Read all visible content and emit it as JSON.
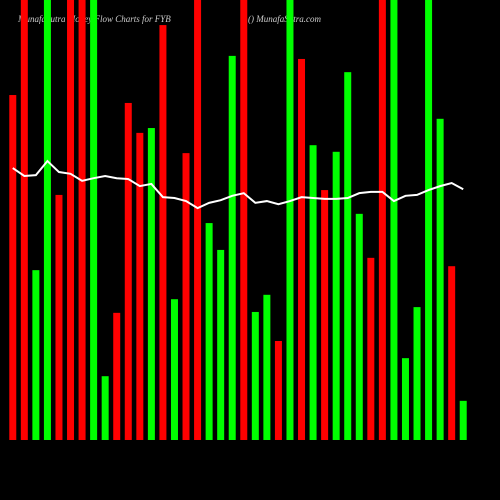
{
  "chart_data": {
    "type": "bar",
    "title": "MunafaSutra  Money Flow  Charts for FYB",
    "subtitle": "() MunafaSutra.com",
    "ylim": [
      0,
      100
    ],
    "values": [
      78.4,
      100,
      38.6,
      100,
      55.7,
      100,
      100,
      100,
      14.5,
      28.9,
      76.6,
      69.8,
      70.9,
      94.3,
      32.0,
      65.2,
      100,
      49.3,
      43.2,
      87.3,
      100,
      29.1,
      33.0,
      22.5,
      100,
      86.6,
      67.0,
      56.8,
      65.5,
      83.6,
      51.4,
      41.4,
      100,
      100,
      18.6,
      30.2,
      100,
      73.0,
      39.5,
      8.9
    ],
    "colors": [
      "#ff0000",
      "#ff0000",
      "#00ff00",
      "#00ff00",
      "#ff0000",
      "#ff0000",
      "#ff0000",
      "#00ff00",
      "#00ff00",
      "#ff0000",
      "#ff0000",
      "#ff0000",
      "#00ff00",
      "#ff0000",
      "#00ff00",
      "#ff0000",
      "#ff0000",
      "#00ff00",
      "#00ff00",
      "#00ff00",
      "#ff0000",
      "#00ff00",
      "#00ff00",
      "#ff0000",
      "#00ff00",
      "#ff0000",
      "#00ff00",
      "#ff0000",
      "#00ff00",
      "#00ff00",
      "#00ff00",
      "#ff0000",
      "#ff0000",
      "#00ff00",
      "#00ff00",
      "#00ff00",
      "#00ff00",
      "#00ff00",
      "#ff0000",
      "#00ff00"
    ],
    "line_values": [
      61.8,
      60.0,
      60.2,
      63.4,
      60.9,
      60.5,
      58.9,
      59.5,
      60.0,
      59.5,
      59.3,
      57.7,
      58.2,
      55.2,
      55.0,
      54.3,
      52.7,
      53.9,
      54.5,
      55.5,
      56.1,
      53.9,
      54.3,
      53.6,
      54.3,
      55.2,
      55.0,
      54.8,
      54.8,
      55.0,
      56.1,
      56.4,
      56.4,
      54.3,
      55.5,
      55.7,
      56.8,
      57.7,
      58.4,
      57.0
    ],
    "line_color": "#ffffff"
  }
}
